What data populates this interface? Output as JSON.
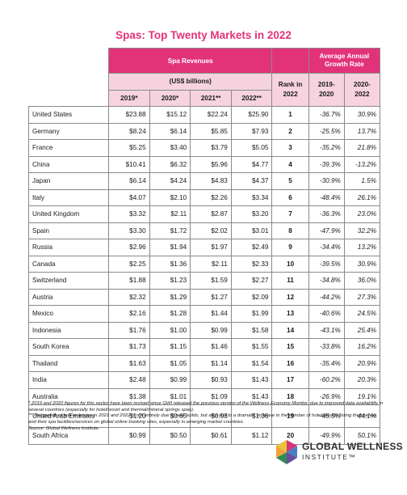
{
  "title": "Spas: Top Twenty Markets in 2022",
  "header": {
    "spa_revenues": "Spa Revenues",
    "units": "(US$ billions)",
    "rank": "Rank in 2022",
    "growth": "Average Annual Growth Rate",
    "years": [
      "2019*",
      "2020*",
      "2021**",
      "2022**"
    ],
    "growth_periods": [
      "2019-2020",
      "2020-2022"
    ]
  },
  "rows": [
    {
      "country": "United States",
      "v2019": "$23.88",
      "v2020": "$15.12",
      "v2021": "$22.24",
      "v2022": "$25.90",
      "rank": "1",
      "g1920": "-36.7%",
      "g2022": "30.9%"
    },
    {
      "country": "Germany",
      "v2019": "$8.24",
      "v2020": "$6.14",
      "v2021": "$5.85",
      "v2022": "$7.93",
      "rank": "2",
      "g1920": "-25.5%",
      "g2022": "13.7%"
    },
    {
      "country": "France",
      "v2019": "$5.25",
      "v2020": "$3.40",
      "v2021": "$3.79",
      "v2022": "$5.05",
      "rank": "3",
      "g1920": "-35.2%",
      "g2022": "21.8%"
    },
    {
      "country": "China",
      "v2019": "$10.41",
      "v2020": "$6.32",
      "v2021": "$5.96",
      "v2022": "$4.77",
      "rank": "4",
      "g1920": "-39.3%",
      "g2022": "-13.2%"
    },
    {
      "country": "Japan",
      "v2019": "$6.14",
      "v2020": "$4.24",
      "v2021": "$4.83",
      "v2022": "$4.37",
      "rank": "5",
      "g1920": "-30.9%",
      "g2022": "1.5%"
    },
    {
      "country": "Italy",
      "v2019": "$4.07",
      "v2020": "$2.10",
      "v2021": "$2.26",
      "v2022": "$3.34",
      "rank": "6",
      "g1920": "-48.4%",
      "g2022": "26.1%"
    },
    {
      "country": "United Kingdom",
      "v2019": "$3.32",
      "v2020": "$2.11",
      "v2021": "$2.87",
      "v2022": "$3.20",
      "rank": "7",
      "g1920": "-36.3%",
      "g2022": "23.0%"
    },
    {
      "country": "Spain",
      "v2019": "$3.30",
      "v2020": "$1.72",
      "v2021": "$2.02",
      "v2022": "$3.01",
      "rank": "8",
      "g1920": "-47.9%",
      "g2022": "32.2%"
    },
    {
      "country": "Russia",
      "v2019": "$2.96",
      "v2020": "$1.94",
      "v2021": "$1.97",
      "v2022": "$2.49",
      "rank": "9",
      "g1920": "-34.4%",
      "g2022": "13.2%"
    },
    {
      "country": "Canada",
      "v2019": "$2.25",
      "v2020": "$1.36",
      "v2021": "$2.11",
      "v2022": "$2.33",
      "rank": "10",
      "g1920": "-39.5%",
      "g2022": "30.9%"
    },
    {
      "country": "Switzerland",
      "v2019": "$1.88",
      "v2020": "$1.23",
      "v2021": "$1.59",
      "v2022": "$2.27",
      "rank": "11",
      "g1920": "-34.8%",
      "g2022": "36.0%"
    },
    {
      "country": "Austria",
      "v2019": "$2.32",
      "v2020": "$1.29",
      "v2021": "$1.27",
      "v2022": "$2.09",
      "rank": "12",
      "g1920": "-44.2%",
      "g2022": "27.3%"
    },
    {
      "country": "Mexico",
      "v2019": "$2.16",
      "v2020": "$1.28",
      "v2021": "$1.44",
      "v2022": "$1.99",
      "rank": "13",
      "g1920": "-40.6%",
      "g2022": "24.5%"
    },
    {
      "country": "Indonesia",
      "v2019": "$1.76",
      "v2020": "$1.00",
      "v2021": "$0.99",
      "v2022": "$1.58",
      "rank": "14",
      "g1920": "-43.1%",
      "g2022": "25.4%"
    },
    {
      "country": "South Korea",
      "v2019": "$1.73",
      "v2020": "$1.15",
      "v2021": "$1.46",
      "v2022": "$1.55",
      "rank": "15",
      "g1920": "-33.8%",
      "g2022": "16.2%"
    },
    {
      "country": "Thailand",
      "v2019": "$1.63",
      "v2020": "$1.05",
      "v2021": "$1.14",
      "v2022": "$1.54",
      "rank": "16",
      "g1920": "-35.4%",
      "g2022": "20.9%"
    },
    {
      "country": "India",
      "v2019": "$2.48",
      "v2020": "$0.99",
      "v2021": "$0.93",
      "v2022": "$1.43",
      "rank": "17",
      "g1920": "-60.2%",
      "g2022": "20.3%"
    },
    {
      "country": "Australia",
      "v2019": "$1.38",
      "v2020": "$1.01",
      "v2021": "$1.09",
      "v2022": "$1.43",
      "rank": "18",
      "g1920": "-26.9%",
      "g2022": "19.1%"
    },
    {
      "country": "United Arab Emirates",
      "v2019": "$1.20",
      "v2020": "$0.65",
      "v2021": "$0.93",
      "v2022": "$1.36",
      "rank": "19",
      "g1920": "-45.5%",
      "g2022": "44.1%"
    },
    {
      "country": "South Africa",
      "v2019": "$0.99",
      "v2020": "$0.50",
      "v2021": "$0.61",
      "v2022": "$1.12",
      "rank": "20",
      "g1920": "-49.9%",
      "g2022": "50.1%"
    }
  ],
  "notes": {
    "n1": "* 2019 and 2020 figures for this sector have been revised since GWI released the previous version of the Wellness Economy Monitor, due to improved data availability in several countries (especially for hotel/resort and thermal/mineral springs spas).",
    "n2": "** The growth of spa revenues in 2021 and 2022 is not entirely due to new builds, but also due to a dramatic increase in the number of hotel/resorts listing themselves and their spa facilities/services on global online booking sites, especially in emerging market countries.",
    "source": "Source: Global Wellness Institute."
  },
  "logo": {
    "line1": "GLOBAL WELLNESS",
    "line2": "INSTITUTE™",
    "colors": [
      "#2e8b57",
      "#d8337a",
      "#4a7fc1",
      "#6a4c9c"
    ]
  }
}
